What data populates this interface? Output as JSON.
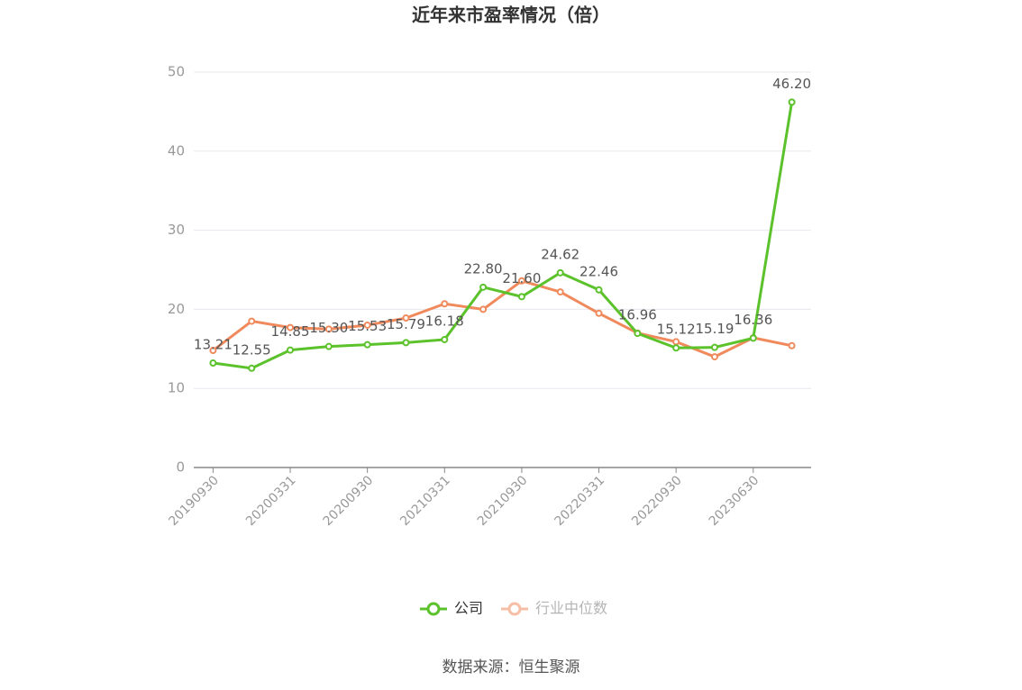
{
  "chart_data": {
    "type": "line",
    "title": "近年来市盈率情况（倍）",
    "source": "数据来源：恒生聚源",
    "categories": [
      "20190930",
      null,
      "20200331",
      null,
      "20200930",
      null,
      "20210331",
      null,
      "20210930",
      null,
      "20220331",
      null,
      "20220930",
      null,
      "20230630",
      null
    ],
    "series": [
      {
        "name": "公司",
        "color": "#5cc22c",
        "values": [
          13.21,
          12.55,
          14.85,
          15.3,
          15.53,
          15.79,
          16.18,
          22.8,
          21.6,
          24.62,
          22.46,
          16.96,
          15.12,
          15.19,
          16.36,
          46.2
        ],
        "value_labels": [
          "13.21",
          "12.55",
          "14.85",
          "15.30",
          "15.53",
          "15.79",
          "16.18",
          "22.80",
          "21.60",
          "24.62",
          "22.46",
          "16.96",
          "15.12",
          "15.19",
          "16.36",
          "46.20"
        ]
      },
      {
        "name": "行业中位数",
        "color": "#f08a5d",
        "values": [
          14.8,
          18.5,
          17.7,
          17.5,
          18.0,
          18.9,
          20.7,
          20.0,
          23.6,
          22.2,
          19.5,
          17.0,
          15.9,
          14.0,
          16.4,
          15.4
        ]
      }
    ],
    "ylim": [
      0,
      50
    ],
    "yticks": [
      0,
      10,
      20,
      30,
      40,
      50
    ],
    "grid": true
  }
}
